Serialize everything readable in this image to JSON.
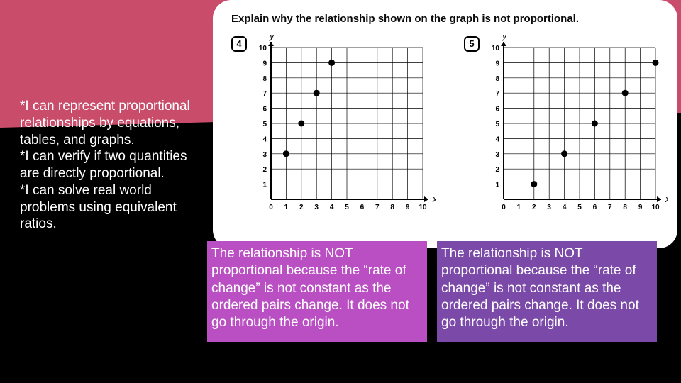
{
  "card": {
    "title": "Explain why the relationship shown on the graph is not proportional."
  },
  "objectives": {
    "line1": "*I can represent proportional relationships by equations, tables, and graphs.",
    "line2": "*I can verify if two quantities are directly proportional.",
    "line3": "*I can solve real world problems using equivalent ratios."
  },
  "q4": {
    "number": "4",
    "x_axis_label": "x",
    "y_axis_label": "y",
    "x_ticks": [
      "0",
      "1",
      "2",
      "3",
      "4",
      "5",
      "6",
      "7",
      "8",
      "9",
      "10"
    ],
    "y_ticks": [
      "1",
      "2",
      "3",
      "4",
      "5",
      "6",
      "7",
      "8",
      "9",
      "10"
    ],
    "grid_max": 10,
    "points": [
      {
        "x": 1,
        "y": 3
      },
      {
        "x": 2,
        "y": 5
      },
      {
        "x": 3,
        "y": 7
      },
      {
        "x": 4,
        "y": 9
      }
    ],
    "point_color": "#000000",
    "grid_color": "#000000",
    "background_color": "#ffffff",
    "tick_fontsize": 10,
    "axis_label_fontsize": 13
  },
  "q5": {
    "number": "5",
    "x_axis_label": "x",
    "y_axis_label": "y",
    "x_ticks": [
      "0",
      "1",
      "2",
      "3",
      "4",
      "5",
      "6",
      "7",
      "8",
      "9",
      "10"
    ],
    "y_ticks": [
      "1",
      "2",
      "3",
      "4",
      "5",
      "6",
      "7",
      "8",
      "9",
      "10"
    ],
    "grid_max": 10,
    "points": [
      {
        "x": 2,
        "y": 1
      },
      {
        "x": 4,
        "y": 3
      },
      {
        "x": 6,
        "y": 5
      },
      {
        "x": 8,
        "y": 7
      },
      {
        "x": 10,
        "y": 9
      }
    ],
    "point_color": "#000000",
    "grid_color": "#000000",
    "background_color": "#ffffff",
    "tick_fontsize": 10,
    "axis_label_fontsize": 13
  },
  "answers": {
    "a1": "The relationship is NOT proportional because the “rate of change” is not constant as the ordered pairs change. It does not go through the origin.",
    "a2": "The relationship is NOT proportional because the “rate of change” is not constant as the ordered pairs change. It does not go through the origin."
  },
  "colors": {
    "page_bg": "#000000",
    "band": "#c94d6a",
    "card_bg": "#ffffff",
    "ans1_bg": "#b94fc2",
    "ans2_bg": "#7b4aa8",
    "text_light": "#ffffff",
    "text_dark": "#0b0b0b"
  }
}
